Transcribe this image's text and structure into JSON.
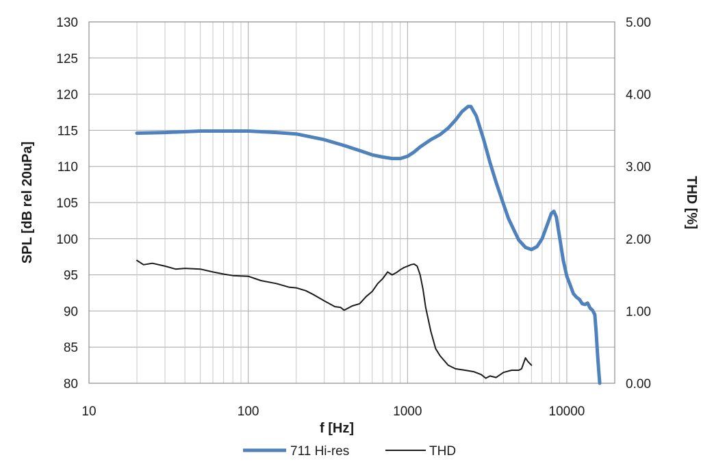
{
  "chart_data": {
    "type": "line",
    "title": "",
    "xlabel": "f [Hz]",
    "ylabel": "SPL [dB rel 20uPa]",
    "y2label": "THD [%]",
    "x_scale": "log",
    "xlim": [
      10,
      20000
    ],
    "ylim": [
      80,
      130
    ],
    "y2lim": [
      0,
      5
    ],
    "x_ticks": [
      "10",
      "100",
      "1000",
      "10000"
    ],
    "y_ticks": [
      "80",
      "85",
      "90",
      "95",
      "100",
      "105",
      "110",
      "115",
      "120",
      "125",
      "130"
    ],
    "y2_ticks": [
      "0.00",
      "1.00",
      "2.00",
      "3.00",
      "4.00",
      "5.00"
    ],
    "grid": true,
    "legend_position": "bottom",
    "series": [
      {
        "name": "711 Hi-res",
        "axis": "left",
        "color": "#4f81bd",
        "x": [
          20,
          30,
          50,
          70,
          100,
          150,
          200,
          300,
          400,
          500,
          600,
          700,
          800,
          900,
          1000,
          1100,
          1200,
          1400,
          1600,
          1800,
          2000,
          2200,
          2400,
          2500,
          2700,
          3000,
          3300,
          3600,
          4000,
          4300,
          4700,
          5000,
          5500,
          6000,
          6500,
          7000,
          7500,
          8000,
          8300,
          8600,
          9000,
          9500,
          10000,
          10500,
          11000,
          11500,
          12000,
          12500,
          13000,
          13500,
          14000,
          14500,
          15000,
          15300,
          15600,
          15900,
          16100
        ],
        "values": [
          114.6,
          114.7,
          114.9,
          114.9,
          114.9,
          114.7,
          114.5,
          113.7,
          112.9,
          112.2,
          111.6,
          111.3,
          111.1,
          111.1,
          111.4,
          112.0,
          112.7,
          113.7,
          114.4,
          115.3,
          116.4,
          117.6,
          118.3,
          118.3,
          117.0,
          113.8,
          110.5,
          107.8,
          104.8,
          102.8,
          101.0,
          99.8,
          98.8,
          98.5,
          98.9,
          100.0,
          101.8,
          103.5,
          103.8,
          103.0,
          100.3,
          97.0,
          94.8,
          93.6,
          92.4,
          91.9,
          91.6,
          91.0,
          90.9,
          91.1,
          90.4,
          90.1,
          89.5,
          87.0,
          84.0,
          81.5,
          80.0
        ]
      },
      {
        "name": "THD",
        "axis": "right",
        "color": "#1a1a1a",
        "x": [
          20,
          22,
          25,
          30,
          35,
          40,
          50,
          60,
          70,
          80,
          100,
          120,
          150,
          180,
          200,
          230,
          260,
          300,
          350,
          380,
          400,
          450,
          500,
          550,
          600,
          650,
          700,
          750,
          800,
          850,
          900,
          950,
          1000,
          1050,
          1100,
          1150,
          1200,
          1250,
          1300,
          1400,
          1500,
          1600,
          1800,
          2000,
          2300,
          2600,
          2900,
          3100,
          3300,
          3600,
          4000,
          4500,
          5000,
          5200,
          5500,
          5700,
          6000
        ],
        "values": [
          1.7,
          1.64,
          1.66,
          1.62,
          1.58,
          1.59,
          1.58,
          1.54,
          1.51,
          1.49,
          1.48,
          1.42,
          1.38,
          1.33,
          1.32,
          1.28,
          1.22,
          1.14,
          1.06,
          1.05,
          1.01,
          1.07,
          1.1,
          1.2,
          1.27,
          1.38,
          1.45,
          1.54,
          1.5,
          1.53,
          1.57,
          1.6,
          1.62,
          1.64,
          1.65,
          1.62,
          1.5,
          1.3,
          1.05,
          0.72,
          0.48,
          0.38,
          0.25,
          0.2,
          0.18,
          0.16,
          0.12,
          0.07,
          0.1,
          0.08,
          0.15,
          0.18,
          0.18,
          0.2,
          0.35,
          0.3,
          0.25
        ]
      }
    ]
  }
}
